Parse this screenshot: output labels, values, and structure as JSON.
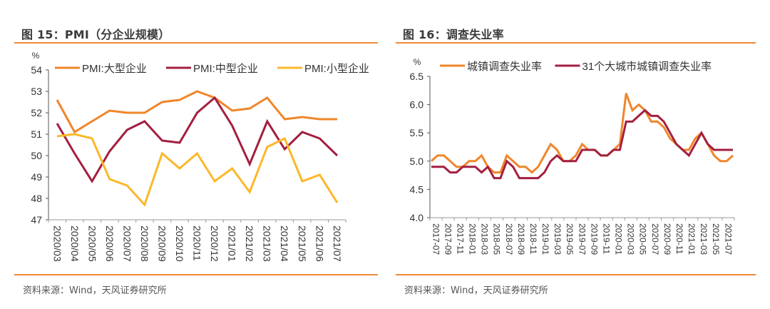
{
  "colors": {
    "accent_rule": "#ee8a35",
    "series_orange": "#f0862a",
    "series_crimson": "#a31f40",
    "series_yellow": "#fcb82a",
    "axis": "#555555",
    "text": "#333333"
  },
  "left": {
    "title": "图 15：PMI（分企业规模）",
    "source": "资料来源：Wind，天风证券研究所"
  },
  "right": {
    "title": "图 16：调查失业率",
    "source": "资料来源：Wind，天风证券研究所"
  },
  "chart_data": [
    {
      "id": "pmi",
      "type": "line",
      "title": "PMI（分企业规模）",
      "ylabel": "%",
      "xlabel": "",
      "ylim": [
        47,
        54
      ],
      "yticks": [
        47,
        48,
        49,
        50,
        51,
        52,
        53,
        54
      ],
      "ytick_labels": [
        "47",
        "48",
        "49",
        "50",
        "51",
        "52",
        "53",
        "54"
      ],
      "grid": false,
      "legend": "top",
      "categories": [
        "2020/03",
        "2020/04",
        "2020/05",
        "2020/06",
        "2020/07",
        "2020/08",
        "2020/09",
        "2020/10",
        "2020/11",
        "2020/12",
        "2021/01",
        "2021/02",
        "2021/03",
        "2021/04",
        "2021/05",
        "2021/06",
        "2021/07"
      ],
      "series": [
        {
          "name": "PMI:大型企业",
          "color": "#f0862a",
          "values": [
            52.6,
            51.1,
            51.6,
            52.1,
            52.0,
            52.0,
            52.5,
            52.6,
            53.0,
            52.7,
            52.1,
            52.2,
            52.7,
            51.7,
            51.8,
            51.7,
            51.7
          ]
        },
        {
          "name": "PMI:中型企业",
          "color": "#a31f40",
          "values": [
            51.5,
            50.1,
            48.8,
            50.2,
            51.2,
            51.6,
            50.7,
            50.6,
            52.0,
            52.7,
            51.4,
            49.6,
            51.6,
            50.3,
            51.1,
            50.8,
            50.0
          ]
        },
        {
          "name": "PMI:小型企业",
          "color": "#fcb82a",
          "values": [
            50.9,
            51.0,
            50.8,
            48.9,
            48.6,
            47.7,
            50.1,
            49.4,
            50.1,
            48.8,
            49.4,
            48.3,
            50.4,
            50.8,
            48.8,
            49.1,
            47.8
          ]
        }
      ]
    },
    {
      "id": "unemployment",
      "type": "line",
      "title": "调查失业率",
      "ylabel": "%",
      "xlabel": "",
      "ylim": [
        4.0,
        6.5
      ],
      "yticks": [
        4.0,
        4.5,
        5.0,
        5.5,
        6.0,
        6.5
      ],
      "ytick_labels": [
        "4.0",
        "4.5",
        "5.0",
        "5.5",
        "6.0",
        "6.5"
      ],
      "grid": false,
      "legend": "top",
      "x": [
        "2017-07",
        "2017-08",
        "2017-09",
        "2017-10",
        "2017-11",
        "2017-12",
        "2018-01",
        "2018-02",
        "2018-03",
        "2018-04",
        "2018-05",
        "2018-06",
        "2018-07",
        "2018-08",
        "2018-09",
        "2018-10",
        "2018-11",
        "2018-12",
        "2019-01",
        "2019-02",
        "2019-03",
        "2019-04",
        "2019-05",
        "2019-06",
        "2019-07",
        "2019-08",
        "2019-09",
        "2019-10",
        "2019-11",
        "2019-12",
        "2020-01",
        "2020-02",
        "2020-03",
        "2020-04",
        "2020-05",
        "2020-06",
        "2020-07",
        "2020-08",
        "2020-09",
        "2020-10",
        "2020-11",
        "2020-12",
        "2021-01",
        "2021-02",
        "2021-03",
        "2021-04",
        "2021-05",
        "2021-06",
        "2021-07"
      ],
      "tick_labels": [
        "2017-07",
        "2017-09",
        "2017-11",
        "2018-01",
        "2018-03",
        "2018-05",
        "2018-07",
        "2018-09",
        "2018-11",
        "2019-01",
        "2019-03",
        "2019-05",
        "2019-07",
        "2019-09",
        "2019-11",
        "2020-01",
        "2020-03",
        "2020-05",
        "2020-07",
        "2020-09",
        "2020-11",
        "2021-01",
        "2021-03",
        "2021-05",
        "2021-07"
      ],
      "series": [
        {
          "name": "城镇调查失业率",
          "color": "#f0862a",
          "values": [
            5.0,
            5.1,
            5.1,
            5.0,
            4.9,
            4.9,
            5.0,
            5.0,
            5.1,
            4.9,
            4.8,
            4.8,
            5.1,
            5.0,
            4.9,
            4.9,
            4.8,
            4.9,
            5.1,
            5.3,
            5.2,
            5.0,
            5.0,
            5.1,
            5.3,
            5.2,
            5.2,
            5.1,
            5.1,
            5.2,
            5.3,
            6.2,
            5.9,
            6.0,
            5.9,
            5.7,
            5.7,
            5.6,
            5.4,
            5.3,
            5.2,
            5.2,
            5.4,
            5.5,
            5.3,
            5.1,
            5.0,
            5.0,
            5.1
          ]
        },
        {
          "name": "31个大城市城镇调查失业率",
          "color": "#a31f40",
          "values": [
            4.9,
            4.9,
            4.9,
            4.8,
            4.8,
            4.9,
            4.9,
            4.9,
            4.8,
            4.9,
            4.7,
            4.7,
            5.0,
            4.9,
            4.7,
            4.7,
            4.7,
            4.7,
            4.8,
            5.0,
            5.1,
            5.0,
            5.0,
            5.0,
            5.2,
            5.2,
            5.2,
            5.1,
            5.1,
            5.2,
            5.2,
            5.7,
            5.7,
            5.8,
            5.9,
            5.8,
            5.8,
            5.7,
            5.5,
            5.3,
            5.2,
            5.1,
            5.3,
            5.5,
            5.3,
            5.2,
            5.2,
            5.2,
            5.2
          ]
        }
      ]
    }
  ]
}
